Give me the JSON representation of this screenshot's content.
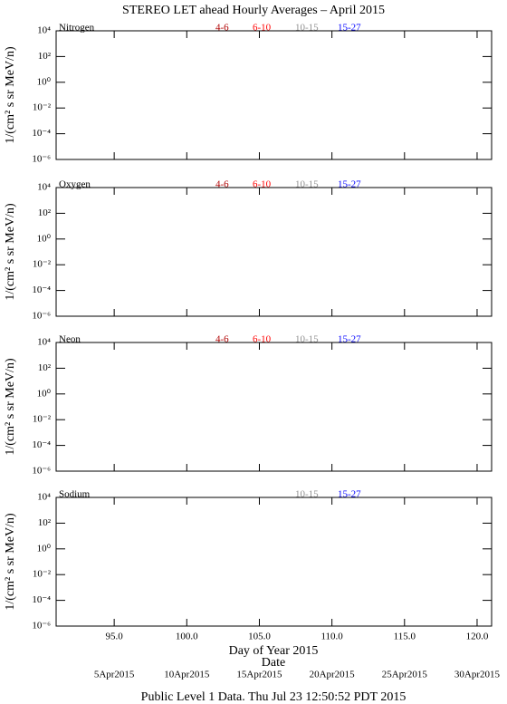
{
  "title": "STEREO LET ahead Hourly Averages – April 2015",
  "xlabel": "Day of Year 2015",
  "date_label": "Date",
  "date_ticks": [
    {
      "value": 95,
      "label": "5Apr2015"
    },
    {
      "value": 100,
      "label": "10Apr2015"
    },
    {
      "value": 105,
      "label": "15Apr2015"
    },
    {
      "value": 110,
      "label": "20Apr2015"
    },
    {
      "value": 115,
      "label": "25Apr2015"
    },
    {
      "value": 120,
      "label": "30Apr2015"
    }
  ],
  "footer": "Public Level 1 Data. Thu Jul 23 12:50:52 PDT 2015",
  "chart_data": [
    {
      "type": "line",
      "title": "Nitrogen",
      "ylabel": "1/(cm² s sr MeV/n)",
      "log_y": true,
      "xlim": [
        91,
        121
      ],
      "xticks": [
        95,
        100,
        105,
        110,
        115,
        120
      ],
      "ylim": [
        1e-06,
        10000
      ],
      "yticks": [
        {
          "value": 10000,
          "label": "10⁴"
        },
        {
          "value": 100,
          "label": "10²"
        },
        {
          "value": 1,
          "label": "10⁰"
        },
        {
          "value": 0.01,
          "label": "10⁻²"
        },
        {
          "value": 0.0001,
          "label": "10⁻⁴"
        },
        {
          "value": 1e-06,
          "label": "10⁻⁶"
        }
      ],
      "series": [
        {
          "name": "4-6",
          "color": "#b00000",
          "values": []
        },
        {
          "name": "6-10",
          "color": "#ff0000",
          "values": []
        },
        {
          "name": "10-15",
          "color": "#909090",
          "values": []
        },
        {
          "name": "15-27",
          "color": "#0000ff",
          "values": []
        }
      ]
    },
    {
      "type": "line",
      "title": "Oxygen",
      "ylabel": "1/(cm² s sr MeV/n)",
      "log_y": true,
      "xlim": [
        91,
        121
      ],
      "xticks": [
        95,
        100,
        105,
        110,
        115,
        120
      ],
      "ylim": [
        1e-06,
        10000
      ],
      "yticks": [
        {
          "value": 10000,
          "label": "10⁴"
        },
        {
          "value": 100,
          "label": "10²"
        },
        {
          "value": 1,
          "label": "10⁰"
        },
        {
          "value": 0.01,
          "label": "10⁻²"
        },
        {
          "value": 0.0001,
          "label": "10⁻⁴"
        },
        {
          "value": 1e-06,
          "label": "10⁻⁶"
        }
      ],
      "series": [
        {
          "name": "4-6",
          "color": "#b00000",
          "values": []
        },
        {
          "name": "6-10",
          "color": "#ff0000",
          "values": []
        },
        {
          "name": "10-15",
          "color": "#909090",
          "values": []
        },
        {
          "name": "15-27",
          "color": "#0000ff",
          "values": []
        }
      ]
    },
    {
      "type": "line",
      "title": "Neon",
      "ylabel": "1/(cm² s sr MeV/n)",
      "log_y": true,
      "xlim": [
        91,
        121
      ],
      "xticks": [
        95,
        100,
        105,
        110,
        115,
        120
      ],
      "ylim": [
        1e-06,
        10000
      ],
      "yticks": [
        {
          "value": 10000,
          "label": "10⁴"
        },
        {
          "value": 100,
          "label": "10²"
        },
        {
          "value": 1,
          "label": "10⁰"
        },
        {
          "value": 0.01,
          "label": "10⁻²"
        },
        {
          "value": 0.0001,
          "label": "10⁻⁴"
        },
        {
          "value": 1e-06,
          "label": "10⁻⁶"
        }
      ],
      "series": [
        {
          "name": "4-6",
          "color": "#b00000",
          "values": []
        },
        {
          "name": "6-10",
          "color": "#ff0000",
          "values": []
        },
        {
          "name": "10-15",
          "color": "#909090",
          "values": []
        },
        {
          "name": "15-27",
          "color": "#0000ff",
          "values": []
        }
      ]
    },
    {
      "type": "line",
      "title": "Sodium",
      "ylabel": "1/(cm² s sr MeV/n)",
      "log_y": true,
      "xlim": [
        91,
        121
      ],
      "xticks": [
        {
          "value": 95,
          "label": "95.0"
        },
        {
          "value": 100,
          "label": "100.0"
        },
        {
          "value": 105,
          "label": "105.0"
        },
        {
          "value": 110,
          "label": "110.0"
        },
        {
          "value": 115,
          "label": "115.0"
        },
        {
          "value": 120,
          "label": "120.0"
        }
      ],
      "ylim": [
        1e-06,
        10000
      ],
      "yticks": [
        {
          "value": 10000,
          "label": "10⁴"
        },
        {
          "value": 100,
          "label": "10²"
        },
        {
          "value": 1,
          "label": "10⁰"
        },
        {
          "value": 0.01,
          "label": "10⁻²"
        },
        {
          "value": 0.0001,
          "label": "10⁻⁴"
        },
        {
          "value": 1e-06,
          "label": "10⁻⁶"
        }
      ],
      "series": [
        {
          "name": "10-15",
          "color": "#909090",
          "values": []
        },
        {
          "name": "15-27",
          "color": "#0000ff",
          "values": []
        }
      ]
    }
  ]
}
